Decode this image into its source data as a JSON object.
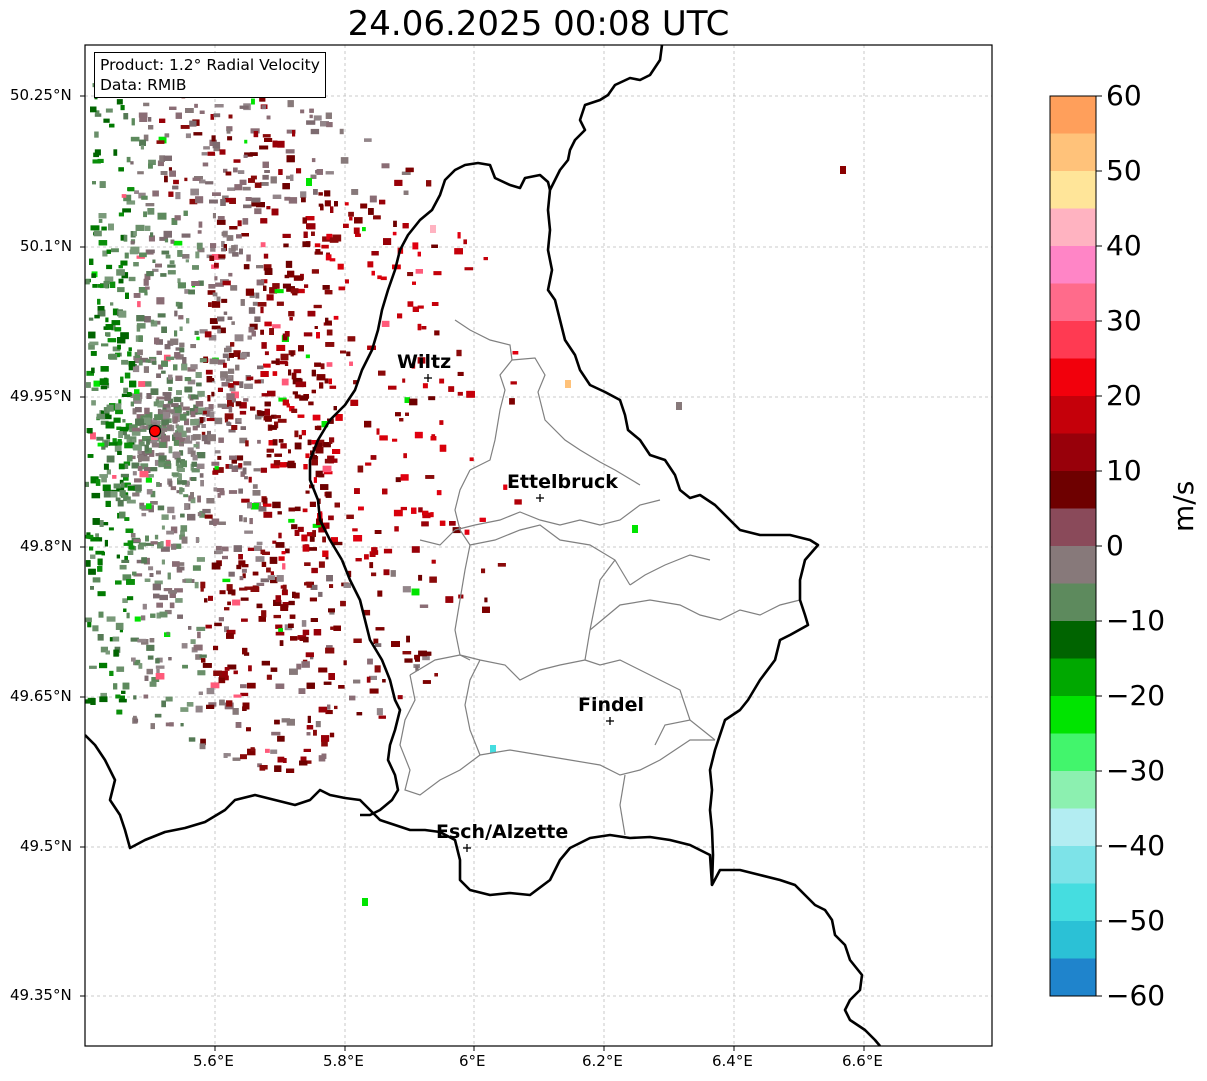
{
  "title": "24.06.2025 00:08 UTC",
  "info": {
    "product": "Product: 1.2° Radial Velocity",
    "data_source": "Data: RMIB"
  },
  "axes": {
    "lat_ticks": [
      "50.25°N",
      "50.1°N",
      "49.95°N",
      "49.8°N",
      "49.65°N",
      "49.5°N",
      "49.35°N"
    ],
    "lon_ticks": [
      "5.6°E",
      "5.8°E",
      "6°E",
      "6.2°E",
      "6.4°E",
      "6.6°E"
    ]
  },
  "colorbar": {
    "unit": "m/s",
    "ticks": [
      "60",
      "50",
      "40",
      "30",
      "20",
      "10",
      "0",
      "−10",
      "−20",
      "−30",
      "−40",
      "−50",
      "−60"
    ],
    "colors": [
      "#ff9f5b",
      "#ffc27a",
      "#ffe599",
      "#ffb3c1",
      "#ff85c6",
      "#ff6b8b",
      "#ff3a52",
      "#f2000c",
      "#c5000a",
      "#98000a",
      "#6e0000",
      "#8a4a5a",
      "#87797a",
      "#5d8a5d",
      "#006400",
      "#00a800",
      "#00e400",
      "#42f56c",
      "#8cf0b0",
      "#b3edf2",
      "#7de3e8",
      "#45dde0",
      "#2bc1d6",
      "#1f84cc"
    ]
  },
  "cities": [
    {
      "name": "Wiltz"
    },
    {
      "name": "Ettelbruck"
    },
    {
      "name": "Findel"
    },
    {
      "name": "Esch/Alzette"
    }
  ],
  "radar_site_color": "#ff0000"
}
